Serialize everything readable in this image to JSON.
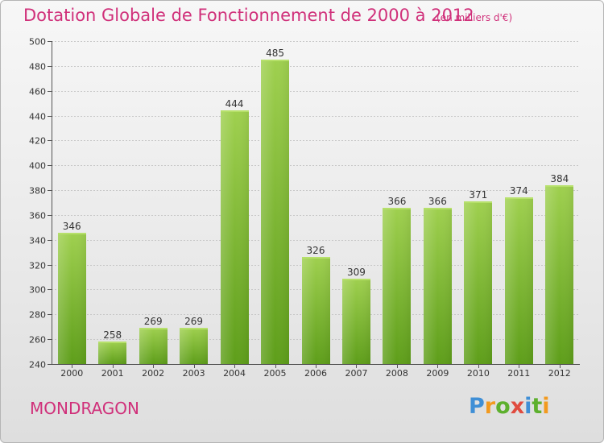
{
  "header": {
    "title": "Dotation Globale de Fonctionnement de 2000 à 2012",
    "units": "(en milliers d'€)"
  },
  "commune": "MONDRAGON",
  "logo": {
    "text": "Proxiti",
    "letters": [
      "P",
      "r",
      "o",
      "x",
      "i",
      "t",
      "i"
    ]
  },
  "colors": {
    "title": "#d0307a",
    "bar_top": "#9fd04f",
    "bar_bottom": "#5e9e1a",
    "grid": "#c8c8c8",
    "axis_text": "#333333"
  },
  "chart_data": {
    "type": "bar",
    "title": "Dotation Globale de Fonctionnement de 2000 à 2012",
    "subtitle": "(en milliers d'€)",
    "xlabel": "",
    "ylabel": "",
    "categories": [
      "2000",
      "2001",
      "2002",
      "2003",
      "2004",
      "2005",
      "2006",
      "2007",
      "2008",
      "2009",
      "2010",
      "2011",
      "2012"
    ],
    "values": [
      346,
      258,
      269,
      269,
      444,
      485,
      326,
      309,
      366,
      366,
      371,
      374,
      384
    ],
    "ylim": [
      240,
      500
    ],
    "yticks": [
      240,
      260,
      280,
      300,
      320,
      340,
      360,
      380,
      400,
      420,
      440,
      460,
      480,
      500
    ],
    "grid": true,
    "legend": "none"
  }
}
